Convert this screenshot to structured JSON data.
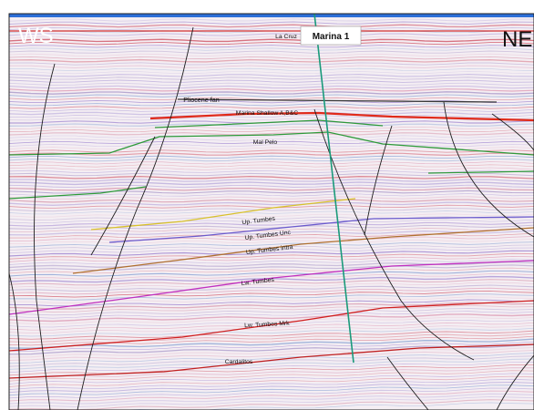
{
  "section": {
    "left_label": "WS",
    "right_label": "NE"
  },
  "well": {
    "name": "Marina 1",
    "color": "#1a9a7a"
  },
  "horizons": [
    {
      "label": "La Cruz",
      "color": "#d23030"
    },
    {
      "label": "Pliocene fan",
      "color": "#3a3a3a"
    },
    {
      "label": "Marina Shallow A,B&C",
      "color": "#e02a1a"
    },
    {
      "label": "Mal Pelo",
      "color": "#2e9a3a"
    },
    {
      "label": "Up. Tumbes",
      "color": "#d8c12a"
    },
    {
      "label": "Up. Tumbes Unc",
      "color": "#6a5acd"
    },
    {
      "label": "Up. Tumbes intra",
      "color": "#b07030"
    },
    {
      "label": "Lw. Tumbes",
      "color": "#c030c0"
    },
    {
      "label": "Lw. Tumbes Mrk",
      "color": "#d02020"
    },
    {
      "label": "Cardalitos",
      "color": "#c02020"
    }
  ],
  "palette": {
    "frame": "#222222",
    "fault": "#1e1e1e",
    "top_band": "#2d6fd8"
  }
}
